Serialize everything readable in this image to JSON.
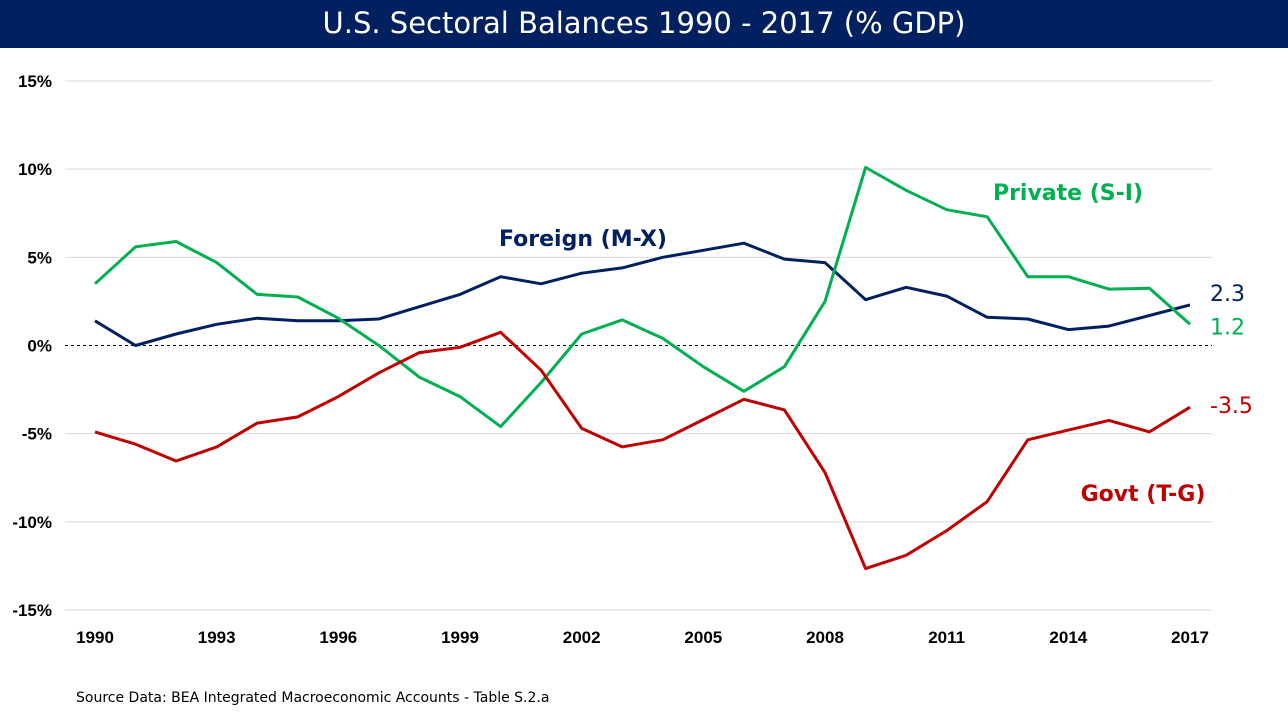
{
  "chart_data": {
    "type": "line",
    "title": "U.S. Sectoral Balances 1990 - 2017 (% GDP)",
    "source": "Source Data:  BEA Integrated Macroeconomic Accounts - Table S.2.a",
    "x": [
      1990,
      1991,
      1992,
      1993,
      1994,
      1995,
      1996,
      1997,
      1998,
      1999,
      2000,
      2001,
      2002,
      2003,
      2004,
      2005,
      2006,
      2007,
      2008,
      2009,
      2010,
      2011,
      2012,
      2013,
      2014,
      2015,
      2016,
      2017
    ],
    "x_ticks": [
      "1990",
      "1993",
      "1996",
      "1999",
      "2002",
      "2005",
      "2008",
      "2011",
      "2014",
      "2017"
    ],
    "y_ticks": [
      "15%",
      "10%",
      "5%",
      "0%",
      "-5%",
      "-10%",
      "-15%"
    ],
    "ylim": [
      -15,
      15
    ],
    "grid": "horizontal",
    "series": [
      {
        "name": "Foreign (M-X)",
        "color": "#002060",
        "end_label": "2.3",
        "values": [
          1.4,
          0.0,
          0.65,
          1.2,
          1.55,
          1.4,
          1.4,
          1.5,
          2.2,
          2.9,
          3.9,
          3.5,
          4.1,
          4.4,
          5.0,
          5.4,
          5.8,
          4.9,
          4.7,
          2.6,
          3.3,
          2.8,
          1.6,
          1.5,
          0.9,
          1.1,
          1.7,
          2.3
        ]
      },
      {
        "name": "Private (S-I)",
        "color": "#00B050",
        "end_label": "1.2",
        "values": [
          3.5,
          5.6,
          5.9,
          4.7,
          2.9,
          2.75,
          1.55,
          0.0,
          -1.8,
          -2.9,
          -4.6,
          -2.1,
          0.65,
          1.45,
          0.4,
          -1.2,
          -2.6,
          -1.2,
          2.5,
          10.1,
          8.8,
          7.7,
          7.3,
          3.9,
          3.9,
          3.2,
          3.25,
          1.2
        ]
      },
      {
        "name": "Govt (T-G)",
        "color": "#C00000",
        "end_label": "-3.5",
        "values": [
          -4.9,
          -5.6,
          -6.55,
          -5.75,
          -4.4,
          -4.05,
          -2.9,
          -1.55,
          -0.4,
          -0.1,
          0.75,
          -1.4,
          -4.7,
          -5.75,
          -5.35,
          -4.2,
          -3.05,
          -3.65,
          -7.2,
          -12.65,
          -11.9,
          -10.5,
          -8.85,
          -5.35,
          -4.8,
          -4.25,
          -4.9,
          -3.5
        ]
      }
    ]
  }
}
